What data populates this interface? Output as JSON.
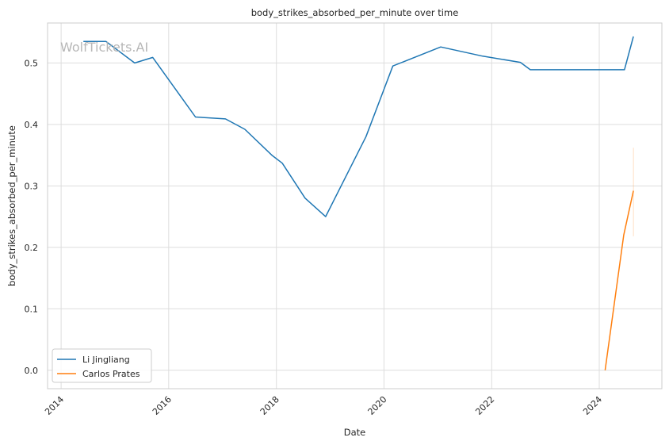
{
  "chart_data": {
    "type": "line",
    "title": "body_strikes_absorbed_per_minute over time",
    "xlabel": "Date",
    "ylabel": "body_strikes_absorbed_per_minute",
    "watermark": "WolfTickets.AI",
    "xlim": [
      "2013-10-01",
      "2025-03-01"
    ],
    "ylim": [
      -0.03,
      0.565
    ],
    "xticks": [
      "2014",
      "2016",
      "2018",
      "2020",
      "2022",
      "2024"
    ],
    "yticks": [
      "0.0",
      "0.1",
      "0.2",
      "0.3",
      "0.4",
      "0.5"
    ],
    "grid": true,
    "legend_position": "lower-left",
    "series": [
      {
        "name": "Li Jingliang",
        "color": "#1f77b4",
        "points": [
          [
            "2014-06-01",
            0.535
          ],
          [
            "2014-11-01",
            0.535
          ],
          [
            "2015-05-15",
            0.5
          ],
          [
            "2015-09-15",
            0.509
          ],
          [
            "2016-07-01",
            0.412
          ],
          [
            "2017-01-20",
            0.409
          ],
          [
            "2017-06-01",
            0.392
          ],
          [
            "2017-12-01",
            0.35
          ],
          [
            "2018-02-10",
            0.337
          ],
          [
            "2018-07-15",
            0.28
          ],
          [
            "2018-12-01",
            0.25
          ],
          [
            "2019-09-01",
            0.38
          ],
          [
            "2020-03-01",
            0.495
          ],
          [
            "2021-01-20",
            0.526
          ],
          [
            "2021-11-01",
            0.511
          ],
          [
            "2022-07-15",
            0.501
          ],
          [
            "2022-09-20",
            0.489
          ],
          [
            "2024-06-20",
            0.489
          ],
          [
            "2024-08-20",
            0.543
          ]
        ]
      },
      {
        "name": "Carlos Prates",
        "color": "#ff7f0e",
        "points": [
          [
            "2024-02-10",
            0.0
          ],
          [
            "2024-06-15",
            0.22
          ],
          [
            "2024-08-20",
            0.292
          ]
        ],
        "error_band": {
          "date": "2024-08-20",
          "low": 0.218,
          "high": 0.362
        }
      }
    ]
  }
}
